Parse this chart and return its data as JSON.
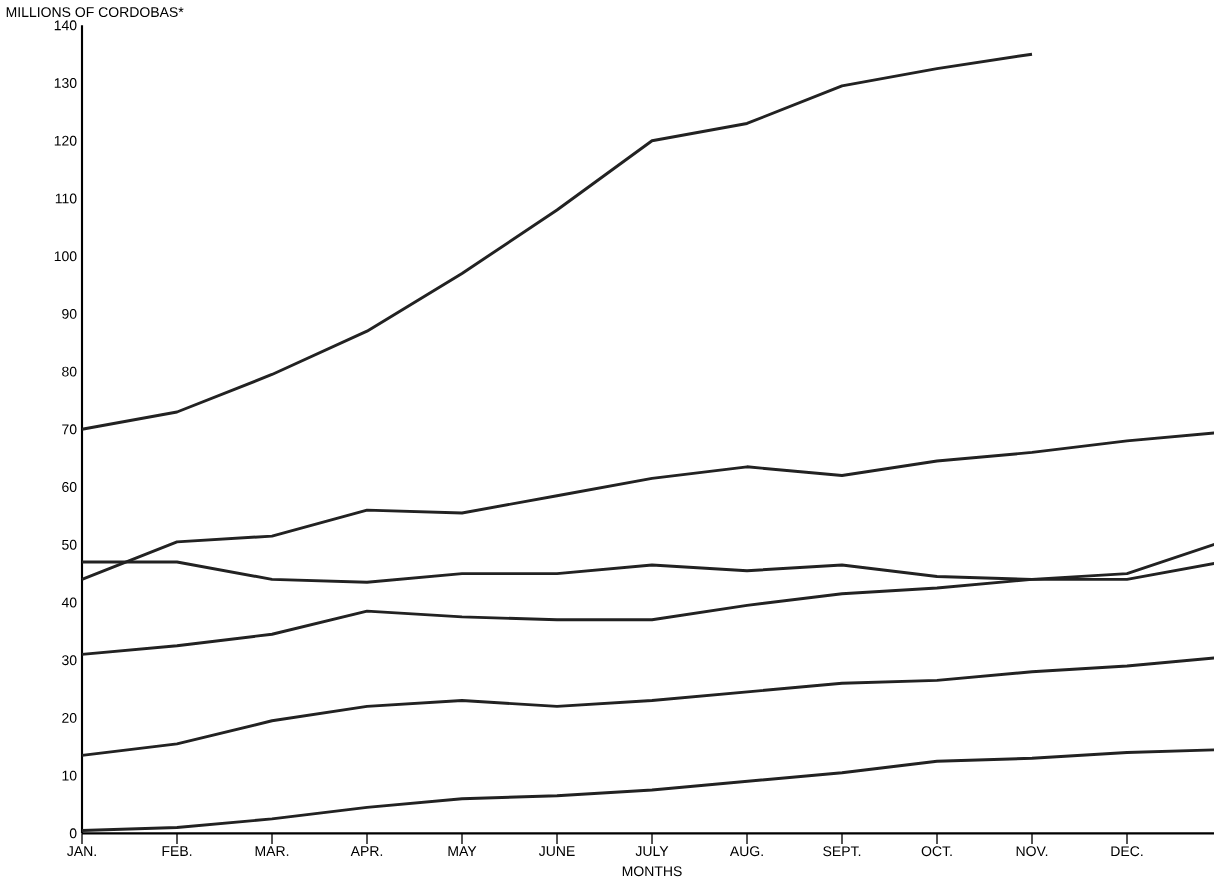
{
  "chart_data": {
    "type": "line",
    "xlabel": "MONTHS",
    "ylabel": "MILLIONS OF CORDOBAS*",
    "categories": [
      "JAN.",
      "FEB.",
      "MAR.",
      "APR.",
      "MAY",
      "JUNE",
      "JULY",
      "AUG.",
      "SEPT.",
      "OCT.",
      "NOV.",
      "DEC.",
      null
    ],
    "ylim": [
      0,
      140
    ],
    "yticks": [
      0,
      10,
      20,
      30,
      40,
      50,
      60,
      70,
      80,
      90,
      100,
      110,
      120,
      130,
      140
    ],
    "grid": false,
    "marker": "none",
    "line_style": "solid",
    "series": [
      {
        "color": "#222222",
        "values": [
          70,
          73,
          79.5,
          87,
          97,
          108,
          120,
          123,
          129.5,
          132.5,
          135,
          null,
          null
        ]
      },
      {
        "color": "#222222",
        "values": [
          44,
          50.5,
          51.5,
          56,
          55.5,
          58.5,
          61.5,
          63.5,
          62,
          64.5,
          66,
          68,
          69.5
        ]
      },
      {
        "color": "#222222",
        "values": [
          47,
          47,
          44,
          43.5,
          45,
          45,
          46.5,
          45.5,
          46.5,
          44.5,
          44,
          45,
          50.5
        ]
      },
      {
        "color": "#222222",
        "values": [
          31,
          32.5,
          34.5,
          38.5,
          37.5,
          37,
          37,
          39.5,
          41.5,
          42.5,
          44,
          44,
          47
        ]
      },
      {
        "color": "#222222",
        "values": [
          13.5,
          15.5,
          19.5,
          22,
          23,
          22,
          23,
          24.5,
          26,
          26.5,
          28,
          29,
          30.5
        ]
      },
      {
        "color": "#222222",
        "values": [
          0.5,
          1,
          2.5,
          4.5,
          6,
          6.5,
          7.5,
          9,
          10.5,
          12.5,
          13,
          14,
          14.5
        ]
      }
    ]
  }
}
